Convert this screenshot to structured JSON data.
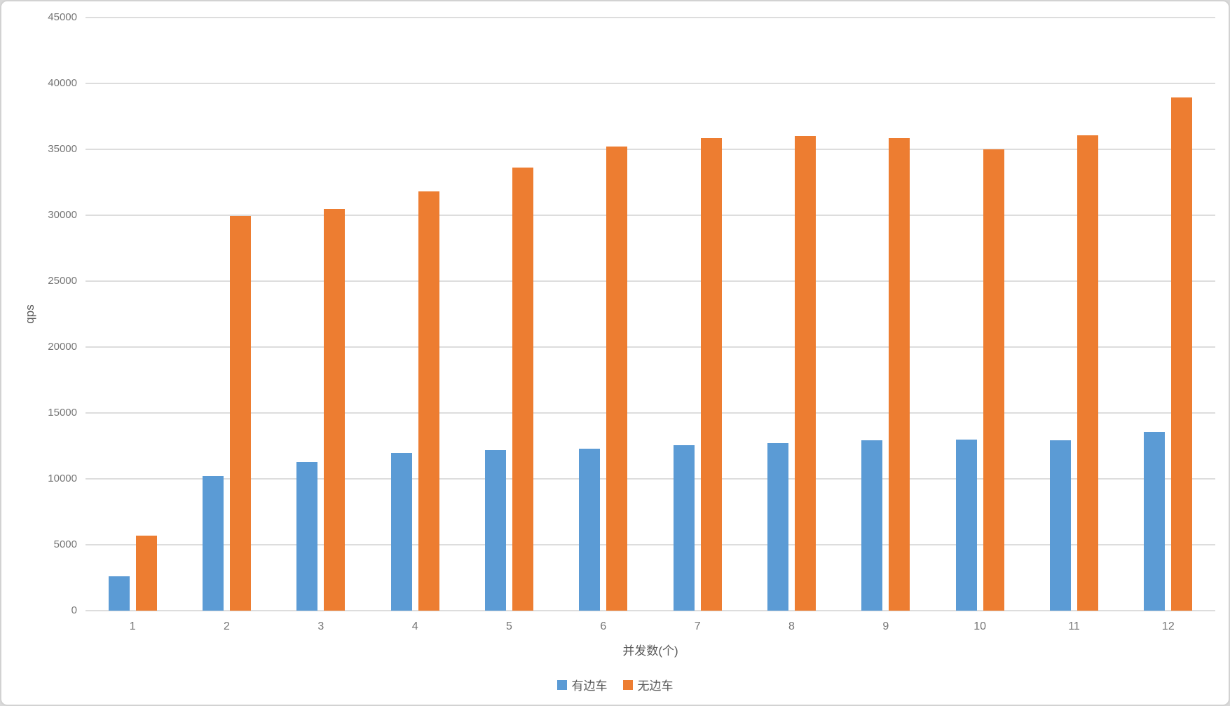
{
  "chart_data": {
    "type": "bar",
    "title": "",
    "xlabel": "并发数(个)",
    "ylabel": "qps",
    "categories": [
      "1",
      "2",
      "3",
      "4",
      "5",
      "6",
      "7",
      "8",
      "9",
      "10",
      "11",
      "12"
    ],
    "series": [
      {
        "name": "有边车",
        "key": "with-sidecar",
        "color": "#5B9BD5",
        "values": [
          2600,
          10200,
          11300,
          11950,
          12200,
          12300,
          12550,
          12700,
          12950,
          13000,
          12950,
          13550
        ]
      },
      {
        "name": "无边车",
        "key": "without-sidecar",
        "color": "#ED7D31",
        "values": [
          5700,
          29950,
          30500,
          31800,
          33600,
          35200,
          35850,
          36000,
          35850,
          35000,
          36050,
          38950
        ]
      }
    ],
    "ylim": [
      0,
      45000
    ],
    "yticks": [
      0,
      5000,
      10000,
      15000,
      20000,
      25000,
      30000,
      35000,
      40000,
      45000
    ],
    "grid": true,
    "legend_position": "bottom"
  },
  "style": {
    "grid_color": "#dddddd",
    "tick_text_color": "#757575",
    "title_text_color": "#595959",
    "card_border_color": "#d2d2d2",
    "background_color": "#ffffff"
  }
}
